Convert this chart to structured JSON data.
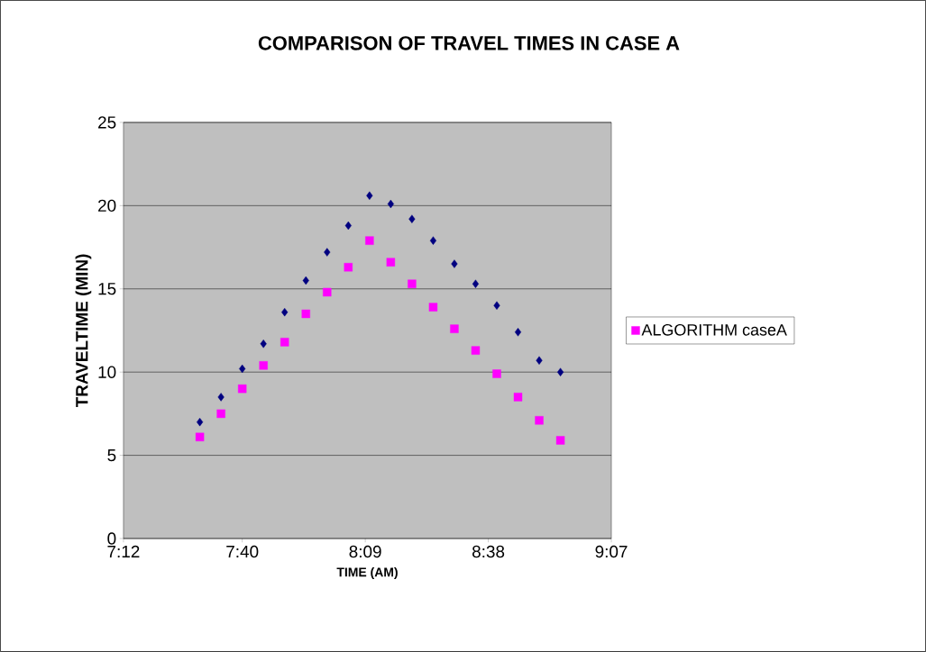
{
  "chart_data": {
    "type": "scatter",
    "title": "COMPARISON OF TRAVEL TIMES IN CASE A",
    "xlabel": "TIME (AM)",
    "ylabel": "TRAVELTIME (MIN)",
    "xlim": [
      7.2,
      9.1167
    ],
    "xticks": [
      {
        "value": 7.2,
        "label": "7:12"
      },
      {
        "value": 7.6667,
        "label": "7:40"
      },
      {
        "value": 8.15,
        "label": "8:09"
      },
      {
        "value": 8.6333,
        "label": "8:38"
      },
      {
        "value": 9.1167,
        "label": "9:07"
      }
    ],
    "ylim": [
      0,
      25
    ],
    "yticks": [
      0,
      5,
      10,
      15,
      20,
      25
    ],
    "grid": "y",
    "legend": "right",
    "x": [
      7.5,
      7.5833,
      7.6667,
      7.75,
      7.8333,
      7.9167,
      8.0,
      8.0833,
      8.1667,
      8.25,
      8.3333,
      8.4167,
      8.5,
      8.5833,
      8.6667,
      8.75,
      8.8333,
      8.9167
    ],
    "series": [
      {
        "color": "#000080",
        "marker": "diamond",
        "values": [
          7.0,
          8.5,
          10.2,
          11.7,
          13.6,
          15.5,
          17.2,
          18.8,
          20.6,
          20.1,
          19.2,
          17.9,
          16.5,
          15.3,
          14.0,
          12.4,
          10.7,
          10.0
        ]
      },
      {
        "name": "ALGORITHM caseA",
        "color": "#ff00ff",
        "marker": "square",
        "values": [
          6.1,
          7.5,
          9.0,
          10.4,
          11.8,
          13.5,
          14.8,
          16.3,
          17.9,
          16.6,
          15.3,
          13.9,
          12.6,
          11.3,
          9.9,
          8.5,
          7.1,
          5.9
        ]
      }
    ]
  }
}
